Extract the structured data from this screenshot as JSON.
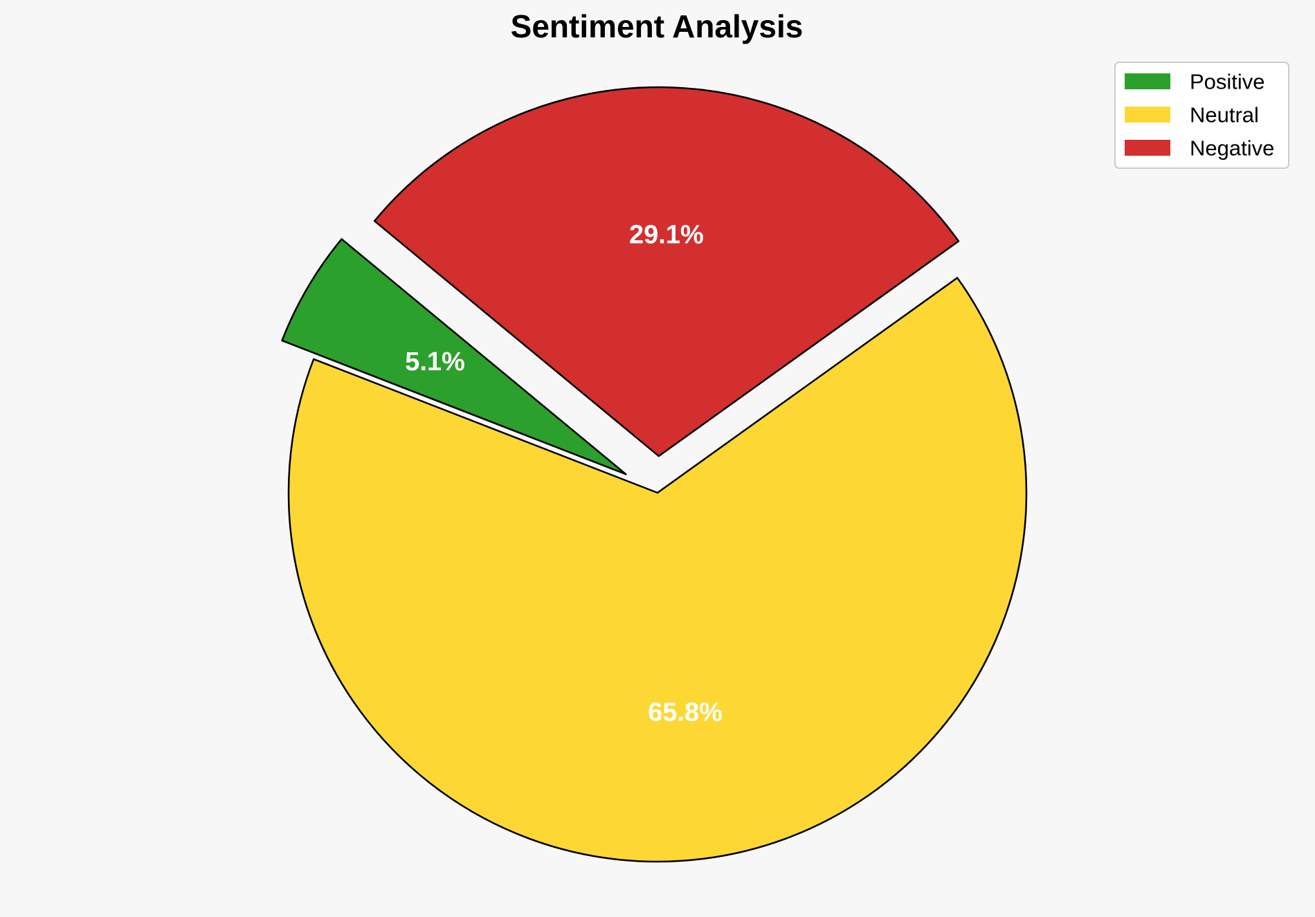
{
  "chart_data": {
    "type": "pie",
    "title": "Sentiment Analysis",
    "categories": [
      "Positive",
      "Neutral",
      "Negative"
    ],
    "values": [
      5.1,
      65.8,
      29.1
    ],
    "value_labels": [
      "5.1%",
      "65.8%",
      "29.1%"
    ],
    "colors": [
      "#2ca02c",
      "#fdd835",
      "#d32f2f"
    ],
    "legend_position": "top-right",
    "exploded": [
      true,
      false,
      true
    ],
    "edge_color": "#000000"
  }
}
